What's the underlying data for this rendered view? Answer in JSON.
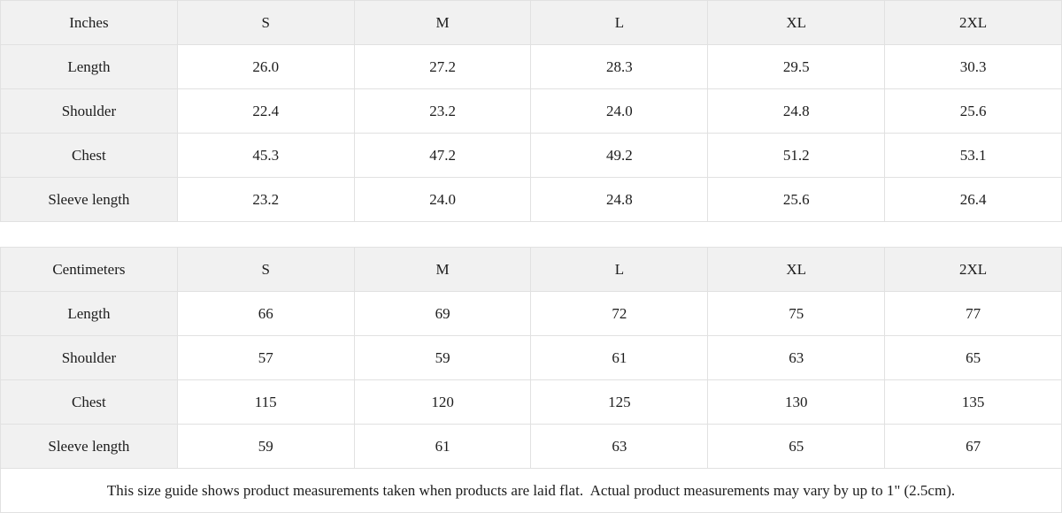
{
  "chart_data": [
    {
      "type": "table",
      "title": "Inches",
      "columns": [
        "Inches",
        "S",
        "M",
        "L",
        "XL",
        "2XL"
      ],
      "rows": [
        {
          "label": "Length",
          "values": [
            "26.0",
            "27.2",
            "28.3",
            "29.5",
            "30.3"
          ]
        },
        {
          "label": "Shoulder",
          "values": [
            "22.4",
            "23.2",
            "24.0",
            "24.8",
            "25.6"
          ]
        },
        {
          "label": "Chest",
          "values": [
            "45.3",
            "47.2",
            "49.2",
            "51.2",
            "53.1"
          ]
        },
        {
          "label": "Sleeve length",
          "values": [
            "23.2",
            "24.0",
            "24.8",
            "25.6",
            "26.4"
          ]
        }
      ]
    },
    {
      "type": "table",
      "title": "Centimeters",
      "columns": [
        "Centimeters",
        "S",
        "M",
        "L",
        "XL",
        "2XL"
      ],
      "rows": [
        {
          "label": "Length",
          "values": [
            "66",
            "69",
            "72",
            "75",
            "77"
          ]
        },
        {
          "label": "Shoulder",
          "values": [
            "57",
            "59",
            "61",
            "63",
            "65"
          ]
        },
        {
          "label": "Chest",
          "values": [
            "115",
            "120",
            "125",
            "130",
            "135"
          ]
        },
        {
          "label": "Sleeve length",
          "values": [
            "59",
            "61",
            "63",
            "65",
            "67"
          ]
        }
      ]
    }
  ],
  "footnote": "This size guide shows product measurements taken when products are laid flat.  Actual product measurements may vary by up to 1\" (2.5cm).",
  "colors": {
    "header_bg": "#f1f1f1",
    "border": "#e1e1e1",
    "text": "#1c1c1c",
    "background": "#ffffff"
  }
}
